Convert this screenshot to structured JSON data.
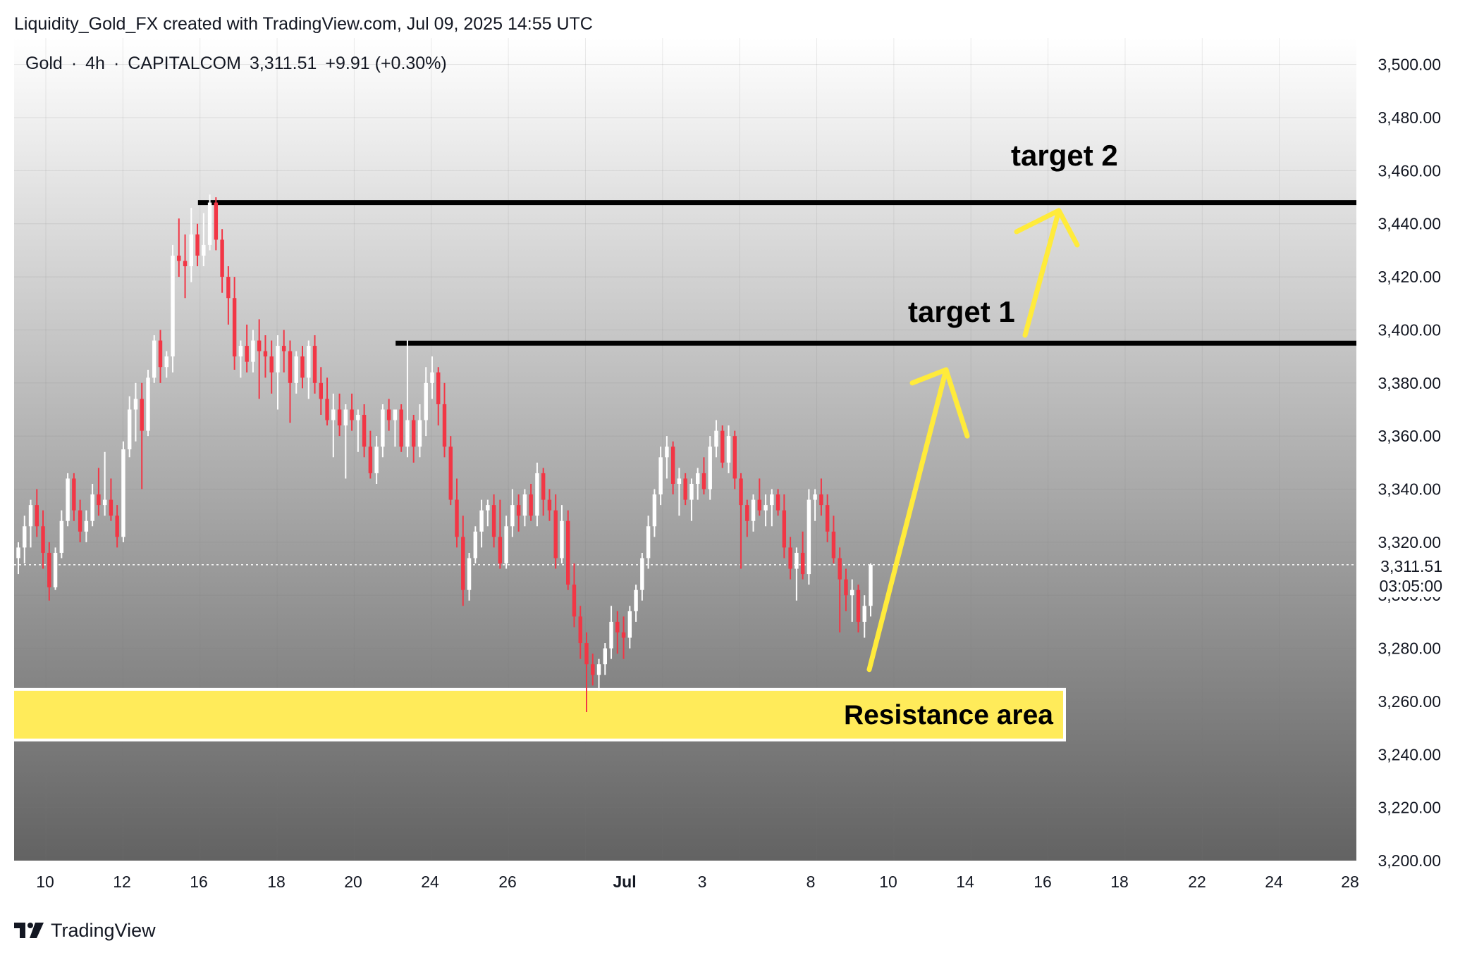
{
  "header": {
    "caption": "Liquidity_Gold_FX created with TradingView.com, Jul 09, 2025 14:55 UTC"
  },
  "symbol": {
    "name": "Gold",
    "interval": "4h",
    "exchange": "CAPITALCOM",
    "price": "3,311.51",
    "change": "+9.91 (+0.30%)",
    "separator": "·"
  },
  "last_price_tag": {
    "price": "3,311.51",
    "countdown": "03:05:00"
  },
  "footer": {
    "brand": "TradingView"
  },
  "colors": {
    "up_candle": "#ffffff",
    "down_candle": "#f23645",
    "bg_top": "#ffffff",
    "bg_bottom": "#5a5a5a",
    "level_line": "#000000",
    "resistance_fill": "#ffeb5a",
    "arrow": "#ffeb3b"
  },
  "chart_data": {
    "type": "candlestick",
    "ylim": [
      3200,
      3510
    ],
    "y_ticks": [
      "3,500.00",
      "3,480.00",
      "3,460.00",
      "3,440.00",
      "3,420.00",
      "3,400.00",
      "3,380.00",
      "3,360.00",
      "3,340.00",
      "3,320.00",
      "3,300.00",
      "3,280.00",
      "3,260.00",
      "3,240.00",
      "3,220.00",
      "3,200.00"
    ],
    "y_tick_values": [
      3500,
      3480,
      3460,
      3440,
      3420,
      3400,
      3380,
      3360,
      3340,
      3320,
      3300,
      3280,
      3260,
      3240,
      3220,
      3200
    ],
    "x_ticks": [
      "10",
      "12",
      "16",
      "18",
      "20",
      "24",
      "26",
      "Jul",
      "3",
      "8",
      "10",
      "14",
      "16",
      "18",
      "22",
      "24",
      "28"
    ],
    "last_price": 3311.51,
    "candles": [
      {
        "o": 3314,
        "h": 3320,
        "l": 3308,
        "c": 3318
      },
      {
        "o": 3318,
        "h": 3330,
        "l": 3312,
        "c": 3326
      },
      {
        "o": 3326,
        "h": 3336,
        "l": 3318,
        "c": 3334
      },
      {
        "o": 3334,
        "h": 3340,
        "l": 3322,
        "c": 3326
      },
      {
        "o": 3326,
        "h": 3332,
        "l": 3310,
        "c": 3316
      },
      {
        "o": 3316,
        "h": 3320,
        "l": 3298,
        "c": 3303
      },
      {
        "o": 3303,
        "h": 3318,
        "l": 3302,
        "c": 3316
      },
      {
        "o": 3316,
        "h": 3332,
        "l": 3314,
        "c": 3328
      },
      {
        "o": 3328,
        "h": 3346,
        "l": 3326,
        "c": 3344
      },
      {
        "o": 3344,
        "h": 3346,
        "l": 3328,
        "c": 3332
      },
      {
        "o": 3332,
        "h": 3336,
        "l": 3320,
        "c": 3324
      },
      {
        "o": 3324,
        "h": 3332,
        "l": 3320,
        "c": 3328
      },
      {
        "o": 3328,
        "h": 3342,
        "l": 3326,
        "c": 3338
      },
      {
        "o": 3338,
        "h": 3348,
        "l": 3330,
        "c": 3334
      },
      {
        "o": 3334,
        "h": 3354,
        "l": 3330,
        "c": 3336
      },
      {
        "o": 3336,
        "h": 3344,
        "l": 3328,
        "c": 3330
      },
      {
        "o": 3330,
        "h": 3334,
        "l": 3318,
        "c": 3322
      },
      {
        "o": 3322,
        "h": 3358,
        "l": 3320,
        "c": 3355
      },
      {
        "o": 3355,
        "h": 3375,
        "l": 3352,
        "c": 3370
      },
      {
        "o": 3370,
        "h": 3380,
        "l": 3358,
        "c": 3374
      },
      {
        "o": 3374,
        "h": 3380,
        "l": 3340,
        "c": 3362
      },
      {
        "o": 3362,
        "h": 3385,
        "l": 3360,
        "c": 3382
      },
      {
        "o": 3382,
        "h": 3398,
        "l": 3380,
        "c": 3396
      },
      {
        "o": 3396,
        "h": 3400,
        "l": 3380,
        "c": 3386
      },
      {
        "o": 3386,
        "h": 3392,
        "l": 3382,
        "c": 3390
      },
      {
        "o": 3390,
        "h": 3432,
        "l": 3384,
        "c": 3428
      },
      {
        "o": 3428,
        "h": 3442,
        "l": 3420,
        "c": 3426
      },
      {
        "o": 3426,
        "h": 3436,
        "l": 3412,
        "c": 3424
      },
      {
        "o": 3424,
        "h": 3446,
        "l": 3418,
        "c": 3436
      },
      {
        "o": 3436,
        "h": 3440,
        "l": 3424,
        "c": 3428
      },
      {
        "o": 3428,
        "h": 3444,
        "l": 3424,
        "c": 3432
      },
      {
        "o": 3432,
        "h": 3451,
        "l": 3430,
        "c": 3448
      },
      {
        "o": 3448,
        "h": 3450,
        "l": 3430,
        "c": 3434
      },
      {
        "o": 3434,
        "h": 3438,
        "l": 3414,
        "c": 3420
      },
      {
        "o": 3420,
        "h": 3424,
        "l": 3402,
        "c": 3412
      },
      {
        "o": 3412,
        "h": 3420,
        "l": 3385,
        "c": 3390
      },
      {
        "o": 3390,
        "h": 3396,
        "l": 3382,
        "c": 3394
      },
      {
        "o": 3394,
        "h": 3402,
        "l": 3384,
        "c": 3388
      },
      {
        "o": 3388,
        "h": 3400,
        "l": 3384,
        "c": 3396
      },
      {
        "o": 3396,
        "h": 3404,
        "l": 3374,
        "c": 3392
      },
      {
        "o": 3392,
        "h": 3398,
        "l": 3382,
        "c": 3390
      },
      {
        "o": 3390,
        "h": 3396,
        "l": 3376,
        "c": 3384
      },
      {
        "o": 3384,
        "h": 3398,
        "l": 3370,
        "c": 3394
      },
      {
        "o": 3394,
        "h": 3400,
        "l": 3384,
        "c": 3392
      },
      {
        "o": 3392,
        "h": 3396,
        "l": 3365,
        "c": 3380
      },
      {
        "o": 3380,
        "h": 3392,
        "l": 3376,
        "c": 3390
      },
      {
        "o": 3390,
        "h": 3394,
        "l": 3378,
        "c": 3382
      },
      {
        "o": 3382,
        "h": 3396,
        "l": 3374,
        "c": 3394
      },
      {
        "o": 3394,
        "h": 3398,
        "l": 3376,
        "c": 3380
      },
      {
        "o": 3380,
        "h": 3386,
        "l": 3368,
        "c": 3374
      },
      {
        "o": 3374,
        "h": 3382,
        "l": 3364,
        "c": 3366
      },
      {
        "o": 3366,
        "h": 3376,
        "l": 3352,
        "c": 3370
      },
      {
        "o": 3370,
        "h": 3376,
        "l": 3360,
        "c": 3364
      },
      {
        "o": 3364,
        "h": 3372,
        "l": 3344,
        "c": 3370
      },
      {
        "o": 3370,
        "h": 3376,
        "l": 3362,
        "c": 3366
      },
      {
        "o": 3366,
        "h": 3370,
        "l": 3354,
        "c": 3368
      },
      {
        "o": 3368,
        "h": 3372,
        "l": 3352,
        "c": 3356
      },
      {
        "o": 3356,
        "h": 3362,
        "l": 3344,
        "c": 3346
      },
      {
        "o": 3346,
        "h": 3360,
        "l": 3342,
        "c": 3356
      },
      {
        "o": 3356,
        "h": 3372,
        "l": 3352,
        "c": 3370
      },
      {
        "o": 3370,
        "h": 3374,
        "l": 3362,
        "c": 3366
      },
      {
        "o": 3366,
        "h": 3370,
        "l": 3356,
        "c": 3370
      },
      {
        "o": 3370,
        "h": 3372,
        "l": 3354,
        "c": 3356
      },
      {
        "o": 3356,
        "h": 3396,
        "l": 3352,
        "c": 3366
      },
      {
        "o": 3366,
        "h": 3368,
        "l": 3350,
        "c": 3356
      },
      {
        "o": 3356,
        "h": 3372,
        "l": 3352,
        "c": 3366
      },
      {
        "o": 3366,
        "h": 3386,
        "l": 3360,
        "c": 3380
      },
      {
        "o": 3380,
        "h": 3390,
        "l": 3374,
        "c": 3384
      },
      {
        "o": 3384,
        "h": 3386,
        "l": 3364,
        "c": 3372
      },
      {
        "o": 3372,
        "h": 3380,
        "l": 3352,
        "c": 3356
      },
      {
        "o": 3356,
        "h": 3360,
        "l": 3334,
        "c": 3336
      },
      {
        "o": 3336,
        "h": 3344,
        "l": 3318,
        "c": 3322
      },
      {
        "o": 3322,
        "h": 3330,
        "l": 3296,
        "c": 3302
      },
      {
        "o": 3302,
        "h": 3316,
        "l": 3298,
        "c": 3314
      },
      {
        "o": 3314,
        "h": 3326,
        "l": 3312,
        "c": 3324
      },
      {
        "o": 3324,
        "h": 3336,
        "l": 3318,
        "c": 3332
      },
      {
        "o": 3332,
        "h": 3336,
        "l": 3326,
        "c": 3334
      },
      {
        "o": 3334,
        "h": 3338,
        "l": 3318,
        "c": 3322
      },
      {
        "o": 3322,
        "h": 3336,
        "l": 3310,
        "c": 3312
      },
      {
        "o": 3312,
        "h": 3330,
        "l": 3310,
        "c": 3326
      },
      {
        "o": 3326,
        "h": 3340,
        "l": 3322,
        "c": 3334
      },
      {
        "o": 3334,
        "h": 3338,
        "l": 3324,
        "c": 3330
      },
      {
        "o": 3330,
        "h": 3340,
        "l": 3326,
        "c": 3338
      },
      {
        "o": 3338,
        "h": 3342,
        "l": 3328,
        "c": 3330
      },
      {
        "o": 3330,
        "h": 3350,
        "l": 3326,
        "c": 3346
      },
      {
        "o": 3346,
        "h": 3348,
        "l": 3330,
        "c": 3336
      },
      {
        "o": 3336,
        "h": 3340,
        "l": 3328,
        "c": 3332
      },
      {
        "o": 3332,
        "h": 3338,
        "l": 3310,
        "c": 3314
      },
      {
        "o": 3314,
        "h": 3334,
        "l": 3312,
        "c": 3328
      },
      {
        "o": 3328,
        "h": 3332,
        "l": 3302,
        "c": 3304
      },
      {
        "o": 3304,
        "h": 3312,
        "l": 3288,
        "c": 3292
      },
      {
        "o": 3292,
        "h": 3296,
        "l": 3276,
        "c": 3282
      },
      {
        "o": 3282,
        "h": 3286,
        "l": 3256,
        "c": 3274
      },
      {
        "o": 3274,
        "h": 3278,
        "l": 3266,
        "c": 3270
      },
      {
        "o": 3270,
        "h": 3276,
        "l": 3264,
        "c": 3274
      },
      {
        "o": 3274,
        "h": 3282,
        "l": 3270,
        "c": 3280
      },
      {
        "o": 3280,
        "h": 3296,
        "l": 3276,
        "c": 3290
      },
      {
        "o": 3290,
        "h": 3294,
        "l": 3278,
        "c": 3286
      },
      {
        "o": 3286,
        "h": 3292,
        "l": 3276,
        "c": 3284
      },
      {
        "o": 3284,
        "h": 3296,
        "l": 3280,
        "c": 3294
      },
      {
        "o": 3294,
        "h": 3304,
        "l": 3290,
        "c": 3302
      },
      {
        "o": 3302,
        "h": 3316,
        "l": 3298,
        "c": 3314
      },
      {
        "o": 3314,
        "h": 3330,
        "l": 3310,
        "c": 3326
      },
      {
        "o": 3326,
        "h": 3340,
        "l": 3322,
        "c": 3338
      },
      {
        "o": 3338,
        "h": 3356,
        "l": 3334,
        "c": 3352
      },
      {
        "o": 3352,
        "h": 3360,
        "l": 3344,
        "c": 3356
      },
      {
        "o": 3356,
        "h": 3358,
        "l": 3338,
        "c": 3342
      },
      {
        "o": 3342,
        "h": 3348,
        "l": 3330,
        "c": 3344
      },
      {
        "o": 3344,
        "h": 3346,
        "l": 3334,
        "c": 3336
      },
      {
        "o": 3336,
        "h": 3344,
        "l": 3328,
        "c": 3342
      },
      {
        "o": 3342,
        "h": 3348,
        "l": 3336,
        "c": 3346
      },
      {
        "o": 3346,
        "h": 3352,
        "l": 3338,
        "c": 3340
      },
      {
        "o": 3340,
        "h": 3360,
        "l": 3336,
        "c": 3356
      },
      {
        "o": 3356,
        "h": 3366,
        "l": 3352,
        "c": 3362
      },
      {
        "o": 3362,
        "h": 3364,
        "l": 3348,
        "c": 3350
      },
      {
        "o": 3350,
        "h": 3364,
        "l": 3346,
        "c": 3360
      },
      {
        "o": 3360,
        "h": 3362,
        "l": 3340,
        "c": 3344
      },
      {
        "o": 3344,
        "h": 3346,
        "l": 3310,
        "c": 3334
      },
      {
        "o": 3334,
        "h": 3336,
        "l": 3322,
        "c": 3328
      },
      {
        "o": 3328,
        "h": 3338,
        "l": 3324,
        "c": 3336
      },
      {
        "o": 3336,
        "h": 3344,
        "l": 3330,
        "c": 3332
      },
      {
        "o": 3332,
        "h": 3338,
        "l": 3326,
        "c": 3334
      },
      {
        "o": 3334,
        "h": 3340,
        "l": 3326,
        "c": 3338
      },
      {
        "o": 3338,
        "h": 3340,
        "l": 3330,
        "c": 3332
      },
      {
        "o": 3332,
        "h": 3338,
        "l": 3314,
        "c": 3318
      },
      {
        "o": 3318,
        "h": 3322,
        "l": 3306,
        "c": 3310
      },
      {
        "o": 3310,
        "h": 3318,
        "l": 3298,
        "c": 3316
      },
      {
        "o": 3316,
        "h": 3324,
        "l": 3306,
        "c": 3308
      },
      {
        "o": 3308,
        "h": 3340,
        "l": 3304,
        "c": 3336
      },
      {
        "o": 3336,
        "h": 3340,
        "l": 3328,
        "c": 3338
      },
      {
        "o": 3338,
        "h": 3344,
        "l": 3330,
        "c": 3334
      },
      {
        "o": 3334,
        "h": 3338,
        "l": 3320,
        "c": 3324
      },
      {
        "o": 3324,
        "h": 3330,
        "l": 3312,
        "c": 3314
      },
      {
        "o": 3314,
        "h": 3318,
        "l": 3286,
        "c": 3306
      },
      {
        "o": 3306,
        "h": 3310,
        "l": 3294,
        "c": 3300
      },
      {
        "o": 3300,
        "h": 3306,
        "l": 3290,
        "c": 3302
      },
      {
        "o": 3302,
        "h": 3304,
        "l": 3286,
        "c": 3290
      },
      {
        "o": 3290,
        "h": 3300,
        "l": 3284,
        "c": 3296
      },
      {
        "o": 3296,
        "h": 3312,
        "l": 3292,
        "c": 3311.51
      }
    ],
    "horizontal_levels": [
      {
        "price": 3448,
        "from_index": 30
      },
      {
        "price": 3395,
        "from_index": 62
      }
    ],
    "annotations": [
      {
        "text": "target 2",
        "y": 3462
      },
      {
        "text": "target 1",
        "y": 3403
      },
      {
        "text": "Resistance area",
        "y_from": 3246,
        "y_to": 3264
      }
    ]
  }
}
